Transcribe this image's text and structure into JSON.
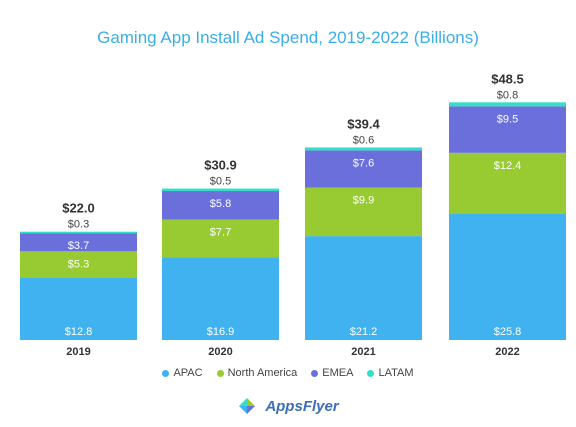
{
  "chart_data": {
    "type": "bar",
    "stacked": true,
    "title": "Gaming App Install Ad Spend, 2019-2022 (Billions)",
    "categories": [
      "2019",
      "2020",
      "2021",
      "2022"
    ],
    "series": [
      {
        "name": "APAC",
        "color": "#3fb2ef",
        "values": [
          12.8,
          16.9,
          21.2,
          25.8
        ],
        "labels": [
          "$12.8",
          "$16.9",
          "$21.2",
          "$25.8"
        ]
      },
      {
        "name": "North America",
        "color": "#98ca31",
        "values": [
          5.3,
          7.7,
          9.9,
          12.4
        ],
        "labels": [
          "$5.3",
          "$7.7",
          "$9.9",
          "$12.4"
        ]
      },
      {
        "name": "EMEA",
        "color": "#6a6fdc",
        "values": [
          3.7,
          5.8,
          7.6,
          9.5
        ],
        "labels": [
          "$3.7",
          "$5.8",
          "$7.6",
          "$9.5"
        ]
      },
      {
        "name": "LATAM",
        "color": "#2ee0c7",
        "values": [
          0.3,
          0.5,
          0.6,
          0.8
        ],
        "labels": [
          "$0.3",
          "$0.5",
          "$0.6",
          "$0.8"
        ]
      }
    ],
    "totals": [
      22.0,
      30.9,
      39.4,
      48.5
    ],
    "total_labels": [
      "$22.0",
      "$30.9",
      "$39.4",
      "$48.5"
    ],
    "ylim": [
      0,
      50
    ],
    "grid": false,
    "legend_position": "bottom"
  },
  "brand": {
    "name": "AppsFlyer",
    "icon": "appsflyer-logo-icon"
  }
}
